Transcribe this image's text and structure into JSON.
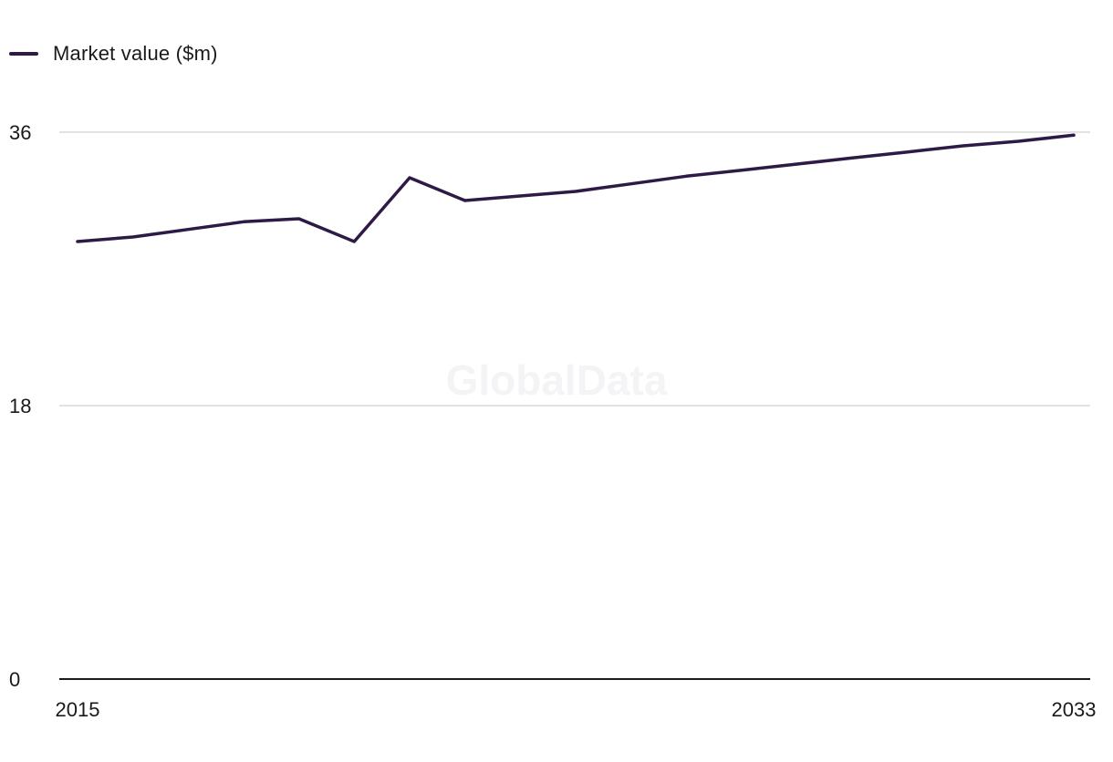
{
  "legend": {
    "label": "Market value ($m)",
    "color": "#2e1a47"
  },
  "watermark": "GlobalData",
  "chart_data": {
    "type": "line",
    "title": "",
    "xlabel": "",
    "ylabel": "",
    "x": [
      2015,
      2016,
      2017,
      2018,
      2019,
      2020,
      2021,
      2022,
      2023,
      2024,
      2025,
      2026,
      2027,
      2028,
      2029,
      2030,
      2031,
      2032,
      2033
    ],
    "series": [
      {
        "name": "Market value ($m)",
        "color": "#2e1a47",
        "values": [
          28.8,
          29.1,
          29.6,
          30.1,
          30.3,
          28.8,
          33.0,
          31.5,
          31.8,
          32.1,
          32.6,
          33.1,
          33.5,
          33.9,
          34.3,
          34.7,
          35.1,
          35.4,
          35.8
        ]
      }
    ],
    "ylim": [
      0,
      36
    ],
    "yticks": [
      0,
      18,
      36
    ],
    "xtick_labels": [
      "2015",
      "2033"
    ],
    "grid": true,
    "legend_position": "top-left"
  }
}
